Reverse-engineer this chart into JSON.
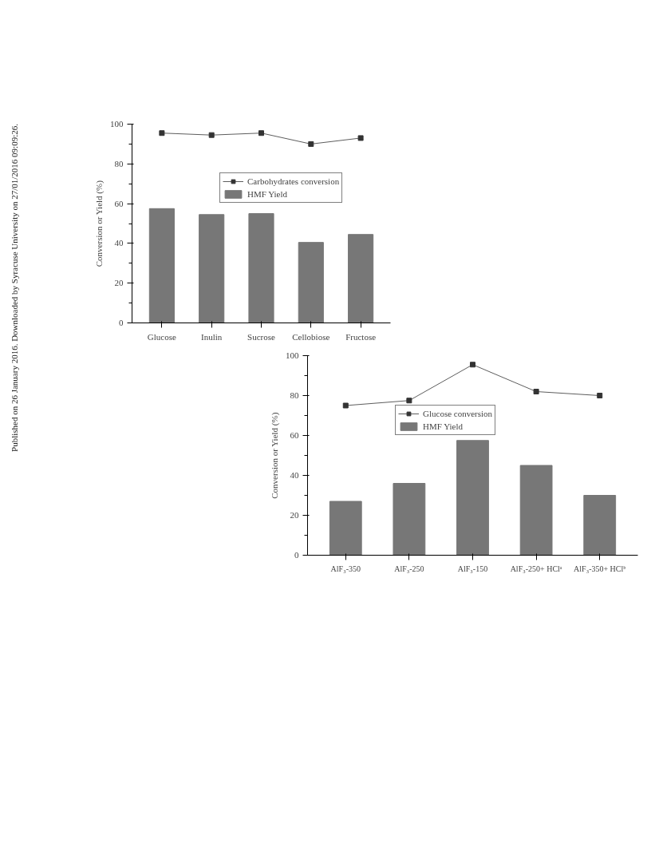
{
  "chart_data": [
    {
      "type": "bar",
      "categories": [
        "Glucose",
        "Inulin",
        "Sucrose",
        "Cellobiose",
        "Fructose"
      ],
      "ylabel": "Conversion or Yield (%)",
      "ylim": [
        0,
        100
      ],
      "yticks": [
        0,
        20,
        40,
        60,
        80,
        100
      ],
      "legend": "top",
      "grid": false,
      "annotations": [
        "Published on 26 January 2016. Downloaded by Syracuse University on 27/01/2016 09:09:26."
      ],
      "series": [
        {
          "name": "Carbohydrates conversion",
          "type": "line",
          "marker": "square",
          "color": "#333333",
          "values": [
            95.5,
            94.5,
            95.5,
            90,
            93
          ]
        },
        {
          "name": "HMF Yield",
          "color": "#777777",
          "values": [
            57.5,
            54.5,
            55,
            40.5,
            44.5
          ]
        }
      ]
    },
    {
      "type": "bar",
      "categories": [
        "AlF₃-350",
        "AlF₃-250",
        "AlF₃-150",
        "AlF₃-250+ HClᵃ",
        "AlF₃-350+ HClᵇ"
      ],
      "ylabel": "Conversion or Yield (%)",
      "ylim": [
        0,
        100
      ],
      "yticks": [
        0,
        20,
        40,
        60,
        80,
        100
      ],
      "legend": "top",
      "grid": false,
      "series": [
        {
          "name": "Glucose conversion",
          "type": "line",
          "marker": "square",
          "color": "#333333",
          "values": [
            75,
            77.5,
            95.5,
            82,
            80
          ]
        },
        {
          "name": "HMF Yield",
          "color": "#777777",
          "values": [
            27,
            36,
            57.5,
            45,
            30
          ]
        }
      ]
    }
  ]
}
